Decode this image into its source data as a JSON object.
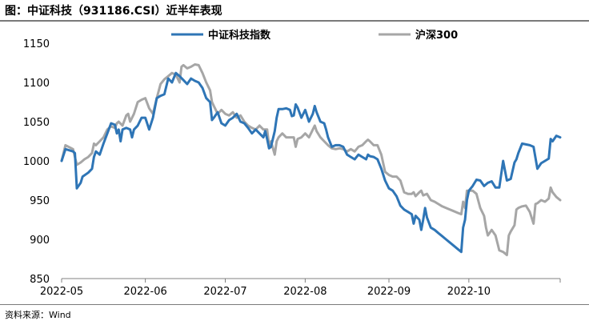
{
  "figure": {
    "title": "图：中证科技（931186.CSI）近半年表现",
    "source": "资料来源：Wind"
  },
  "chart_data": {
    "type": "line",
    "title": "图：中证科技（931186.CSI）近半年表现",
    "xlabel": "",
    "ylabel": "",
    "ylim": [
      850,
      1150
    ],
    "yticks": [
      850,
      900,
      950,
      1000,
      1050,
      1100,
      1150
    ],
    "xlim": [
      0,
      128
    ],
    "xticks": [
      {
        "label": "2022-05",
        "x": 0
      },
      {
        "label": "2022-06",
        "x": 22
      },
      {
        "label": "2022-07",
        "x": 43
      },
      {
        "label": "2022-08",
        "x": 64
      },
      {
        "label": "2022-09",
        "x": 86
      },
      {
        "label": "2022-10",
        "x": 107
      }
    ],
    "legend_position": "top-center",
    "grid": false,
    "series": [
      {
        "name": "中证科技指数",
        "color": "#2e75b6",
        "points": [
          [
            0,
            1000
          ],
          [
            1,
            1015
          ],
          [
            3,
            1012
          ],
          [
            3.5,
            1010
          ],
          [
            4,
            965
          ],
          [
            5,
            972
          ],
          [
            5.5,
            980
          ],
          [
            7,
            985
          ],
          [
            8,
            990
          ],
          [
            8.5,
            1005
          ],
          [
            9,
            1012
          ],
          [
            10,
            1008
          ],
          [
            11,
            1022
          ],
          [
            12,
            1035
          ],
          [
            13,
            1048
          ],
          [
            14,
            1046
          ],
          [
            14.5,
            1035
          ],
          [
            15,
            1040
          ],
          [
            15.5,
            1025
          ],
          [
            16,
            1040
          ],
          [
            17,
            1042
          ],
          [
            18,
            1040
          ],
          [
            18.5,
            1030
          ],
          [
            19,
            1040
          ],
          [
            20,
            1045
          ],
          [
            21,
            1055
          ],
          [
            22,
            1055
          ],
          [
            23,
            1040
          ],
          [
            24,
            1055
          ],
          [
            25,
            1080
          ],
          [
            26,
            1083
          ],
          [
            27,
            1085
          ],
          [
            28,
            1105
          ],
          [
            29,
            1100
          ],
          [
            30,
            1112
          ],
          [
            31,
            1108
          ],
          [
            32,
            1103
          ],
          [
            33,
            1098
          ],
          [
            34,
            1105
          ],
          [
            35,
            1102
          ],
          [
            36,
            1100
          ],
          [
            37,
            1093
          ],
          [
            38,
            1080
          ],
          [
            39,
            1075
          ],
          [
            39.5,
            1052
          ],
          [
            40,
            1055
          ],
          [
            41,
            1062
          ],
          [
            42,
            1048
          ],
          [
            43,
            1045
          ],
          [
            44,
            1052
          ],
          [
            45,
            1055
          ],
          [
            46,
            1060
          ],
          [
            47,
            1050
          ],
          [
            48,
            1048
          ],
          [
            49,
            1042
          ],
          [
            50,
            1035
          ],
          [
            51,
            1040
          ],
          [
            52,
            1035
          ],
          [
            53,
            1030
          ],
          [
            53.5,
            1038
          ],
          [
            54,
            1028
          ],
          [
            54.5,
            1016
          ],
          [
            55,
            1018
          ],
          [
            56,
            1038
          ],
          [
            56.5,
            1055
          ],
          [
            57,
            1066
          ],
          [
            58,
            1066
          ],
          [
            59,
            1067
          ],
          [
            60,
            1065
          ],
          [
            60.5,
            1057
          ],
          [
            61,
            1058
          ],
          [
            61.5,
            1072
          ],
          [
            62,
            1068
          ],
          [
            63,
            1055
          ],
          [
            64,
            1065
          ],
          [
            65,
            1050
          ],
          [
            66,
            1060
          ],
          [
            66.5,
            1070
          ],
          [
            67,
            1062
          ],
          [
            68,
            1050
          ],
          [
            69,
            1048
          ],
          [
            69.5,
            1040
          ],
          [
            70,
            1030
          ],
          [
            71,
            1018
          ],
          [
            72,
            1020
          ],
          [
            73,
            1020
          ],
          [
            74,
            1018
          ],
          [
            75,
            1008
          ],
          [
            76,
            1005
          ],
          [
            77,
            1002
          ],
          [
            78,
            1008
          ],
          [
            79,
            1005
          ],
          [
            80,
            1002
          ],
          [
            80.5,
            1008
          ],
          [
            81,
            1006
          ],
          [
            82,
            1005
          ],
          [
            83,
            1002
          ],
          [
            84,
            990
          ],
          [
            85,
            975
          ],
          [
            86,
            965
          ],
          [
            87,
            962
          ],
          [
            88,
            955
          ],
          [
            89,
            943
          ],
          [
            90,
            938
          ],
          [
            91,
            935
          ],
          [
            92,
            932
          ],
          [
            92.5,
            920
          ],
          [
            93,
            930
          ],
          [
            94,
            925
          ],
          [
            94.5,
            912
          ],
          [
            95,
            925
          ],
          [
            95.5,
            940
          ],
          [
            96,
            928
          ],
          [
            97,
            915
          ],
          [
            98,
            912
          ],
          [
            99,
            908
          ],
          [
            100,
            904
          ],
          [
            101,
            900
          ],
          [
            102,
            896
          ],
          [
            103,
            892
          ],
          [
            104,
            888
          ],
          [
            105,
            884
          ],
          [
            105.5,
            915
          ],
          [
            106,
            925
          ],
          [
            106.5,
            950
          ],
          [
            107,
            962
          ],
          [
            108,
            968
          ],
          [
            109,
            976
          ],
          [
            110,
            975
          ],
          [
            111,
            968
          ],
          [
            112,
            972
          ],
          [
            113,
            974
          ],
          [
            114,
            966
          ],
          [
            115,
            966
          ],
          [
            116,
            1000
          ],
          [
            117,
            975
          ],
          [
            118,
            977
          ],
          [
            119,
            998
          ],
          [
            119.5,
            1002
          ],
          [
            120,
            1010
          ],
          [
            121,
            1022
          ],
          [
            122,
            1021
          ],
          [
            123,
            1020
          ],
          [
            124,
            1018
          ],
          [
            125,
            990
          ],
          [
            126,
            997
          ],
          [
            127,
            1000
          ],
          [
            128,
            1003
          ],
          [
            128.5,
            1028
          ],
          [
            129,
            1025
          ],
          [
            130,
            1032
          ],
          [
            131,
            1030
          ]
        ]
      },
      {
        "name": "沪深300",
        "color": "#a6a6a6",
        "points": [
          [
            0,
            1000
          ],
          [
            1,
            1020
          ],
          [
            3,
            1015
          ],
          [
            3.5,
            1005
          ],
          [
            4,
            995
          ],
          [
            5,
            998
          ],
          [
            6,
            1002
          ],
          [
            7,
            1005
          ],
          [
            8,
            1010
          ],
          [
            8.5,
            1022
          ],
          [
            9,
            1020
          ],
          [
            10,
            1025
          ],
          [
            11,
            1030
          ],
          [
            12,
            1040
          ],
          [
            13,
            1044
          ],
          [
            14,
            1042
          ],
          [
            14.5,
            1048
          ],
          [
            15,
            1050
          ],
          [
            16,
            1045
          ],
          [
            17,
            1058
          ],
          [
            17.5,
            1060
          ],
          [
            18,
            1050
          ],
          [
            19,
            1060
          ],
          [
            20,
            1075
          ],
          [
            21,
            1078
          ],
          [
            22,
            1080
          ],
          [
            23,
            1067
          ],
          [
            24,
            1060
          ],
          [
            25,
            1080
          ],
          [
            26,
            1098
          ],
          [
            27,
            1104
          ],
          [
            28,
            1108
          ],
          [
            29,
            1112
          ],
          [
            30,
            1110
          ],
          [
            31,
            1100
          ],
          [
            31.5,
            1120
          ],
          [
            32,
            1122
          ],
          [
            33,
            1118
          ],
          [
            34,
            1120
          ],
          [
            35,
            1123
          ],
          [
            36,
            1122
          ],
          [
            37,
            1112
          ],
          [
            38,
            1100
          ],
          [
            39,
            1090
          ],
          [
            39.5,
            1075
          ],
          [
            40,
            1070
          ],
          [
            41,
            1060
          ],
          [
            42,
            1065
          ],
          [
            43,
            1060
          ],
          [
            44,
            1058
          ],
          [
            45,
            1062
          ],
          [
            46,
            1055
          ],
          [
            47,
            1058
          ],
          [
            48,
            1050
          ],
          [
            49,
            1045
          ],
          [
            50,
            1042
          ],
          [
            51,
            1040
          ],
          [
            52,
            1045
          ],
          [
            53,
            1040
          ],
          [
            54,
            1040
          ],
          [
            54.5,
            1020
          ],
          [
            55,
            1025
          ],
          [
            56,
            1008
          ],
          [
            56.5,
            1025
          ],
          [
            57,
            1030
          ],
          [
            58,
            1035
          ],
          [
            59,
            1030
          ],
          [
            60,
            1030
          ],
          [
            61,
            1030
          ],
          [
            61.5,
            1018
          ],
          [
            62,
            1028
          ],
          [
            63,
            1030
          ],
          [
            64,
            1035
          ],
          [
            65,
            1030
          ],
          [
            66,
            1040
          ],
          [
            66.5,
            1045
          ],
          [
            67,
            1038
          ],
          [
            68,
            1030
          ],
          [
            69,
            1025
          ],
          [
            70,
            1020
          ],
          [
            71,
            1016
          ],
          [
            72,
            1015
          ],
          [
            73,
            1016
          ],
          [
            74,
            1015
          ],
          [
            75,
            1012
          ],
          [
            76,
            1015
          ],
          [
            77,
            1012
          ],
          [
            78,
            1018
          ],
          [
            79,
            1020
          ],
          [
            80,
            1025
          ],
          [
            80.5,
            1027
          ],
          [
            81,
            1025
          ],
          [
            82,
            1020
          ],
          [
            83,
            1020
          ],
          [
            84,
            1008
          ],
          [
            85,
            986
          ],
          [
            86,
            982
          ],
          [
            87,
            980
          ],
          [
            88,
            980
          ],
          [
            89,
            975
          ],
          [
            90,
            960
          ],
          [
            91,
            958
          ],
          [
            92,
            958
          ],
          [
            92.5,
            960
          ],
          [
            93,
            955
          ],
          [
            94,
            960
          ],
          [
            94.5,
            962
          ],
          [
            95,
            956
          ],
          [
            96,
            958
          ],
          [
            97,
            950
          ],
          [
            98,
            948
          ],
          [
            99,
            945
          ],
          [
            100,
            942
          ],
          [
            101,
            940
          ],
          [
            102,
            938
          ],
          [
            103,
            936
          ],
          [
            104,
            934
          ],
          [
            105,
            932
          ],
          [
            105.5,
            948
          ],
          [
            106,
            940
          ],
          [
            106.5,
            962
          ],
          [
            107,
            962
          ],
          [
            108,
            962
          ],
          [
            109,
            958
          ],
          [
            110,
            940
          ],
          [
            111,
            930
          ],
          [
            111.5,
            915
          ],
          [
            112,
            905
          ],
          [
            113,
            912
          ],
          [
            114,
            905
          ],
          [
            115,
            886
          ],
          [
            116,
            884
          ],
          [
            117,
            880
          ],
          [
            117.5,
            905
          ],
          [
            118,
            910
          ],
          [
            119,
            918
          ],
          [
            119.5,
            938
          ],
          [
            120,
            940
          ],
          [
            121,
            942
          ],
          [
            122,
            943
          ],
          [
            123,
            935
          ],
          [
            124,
            920
          ],
          [
            124.5,
            945
          ],
          [
            125,
            946
          ],
          [
            126,
            950
          ],
          [
            127,
            948
          ],
          [
            128,
            952
          ],
          [
            128.5,
            966
          ],
          [
            129,
            960
          ],
          [
            130,
            954
          ],
          [
            131,
            950
          ]
        ]
      }
    ]
  }
}
